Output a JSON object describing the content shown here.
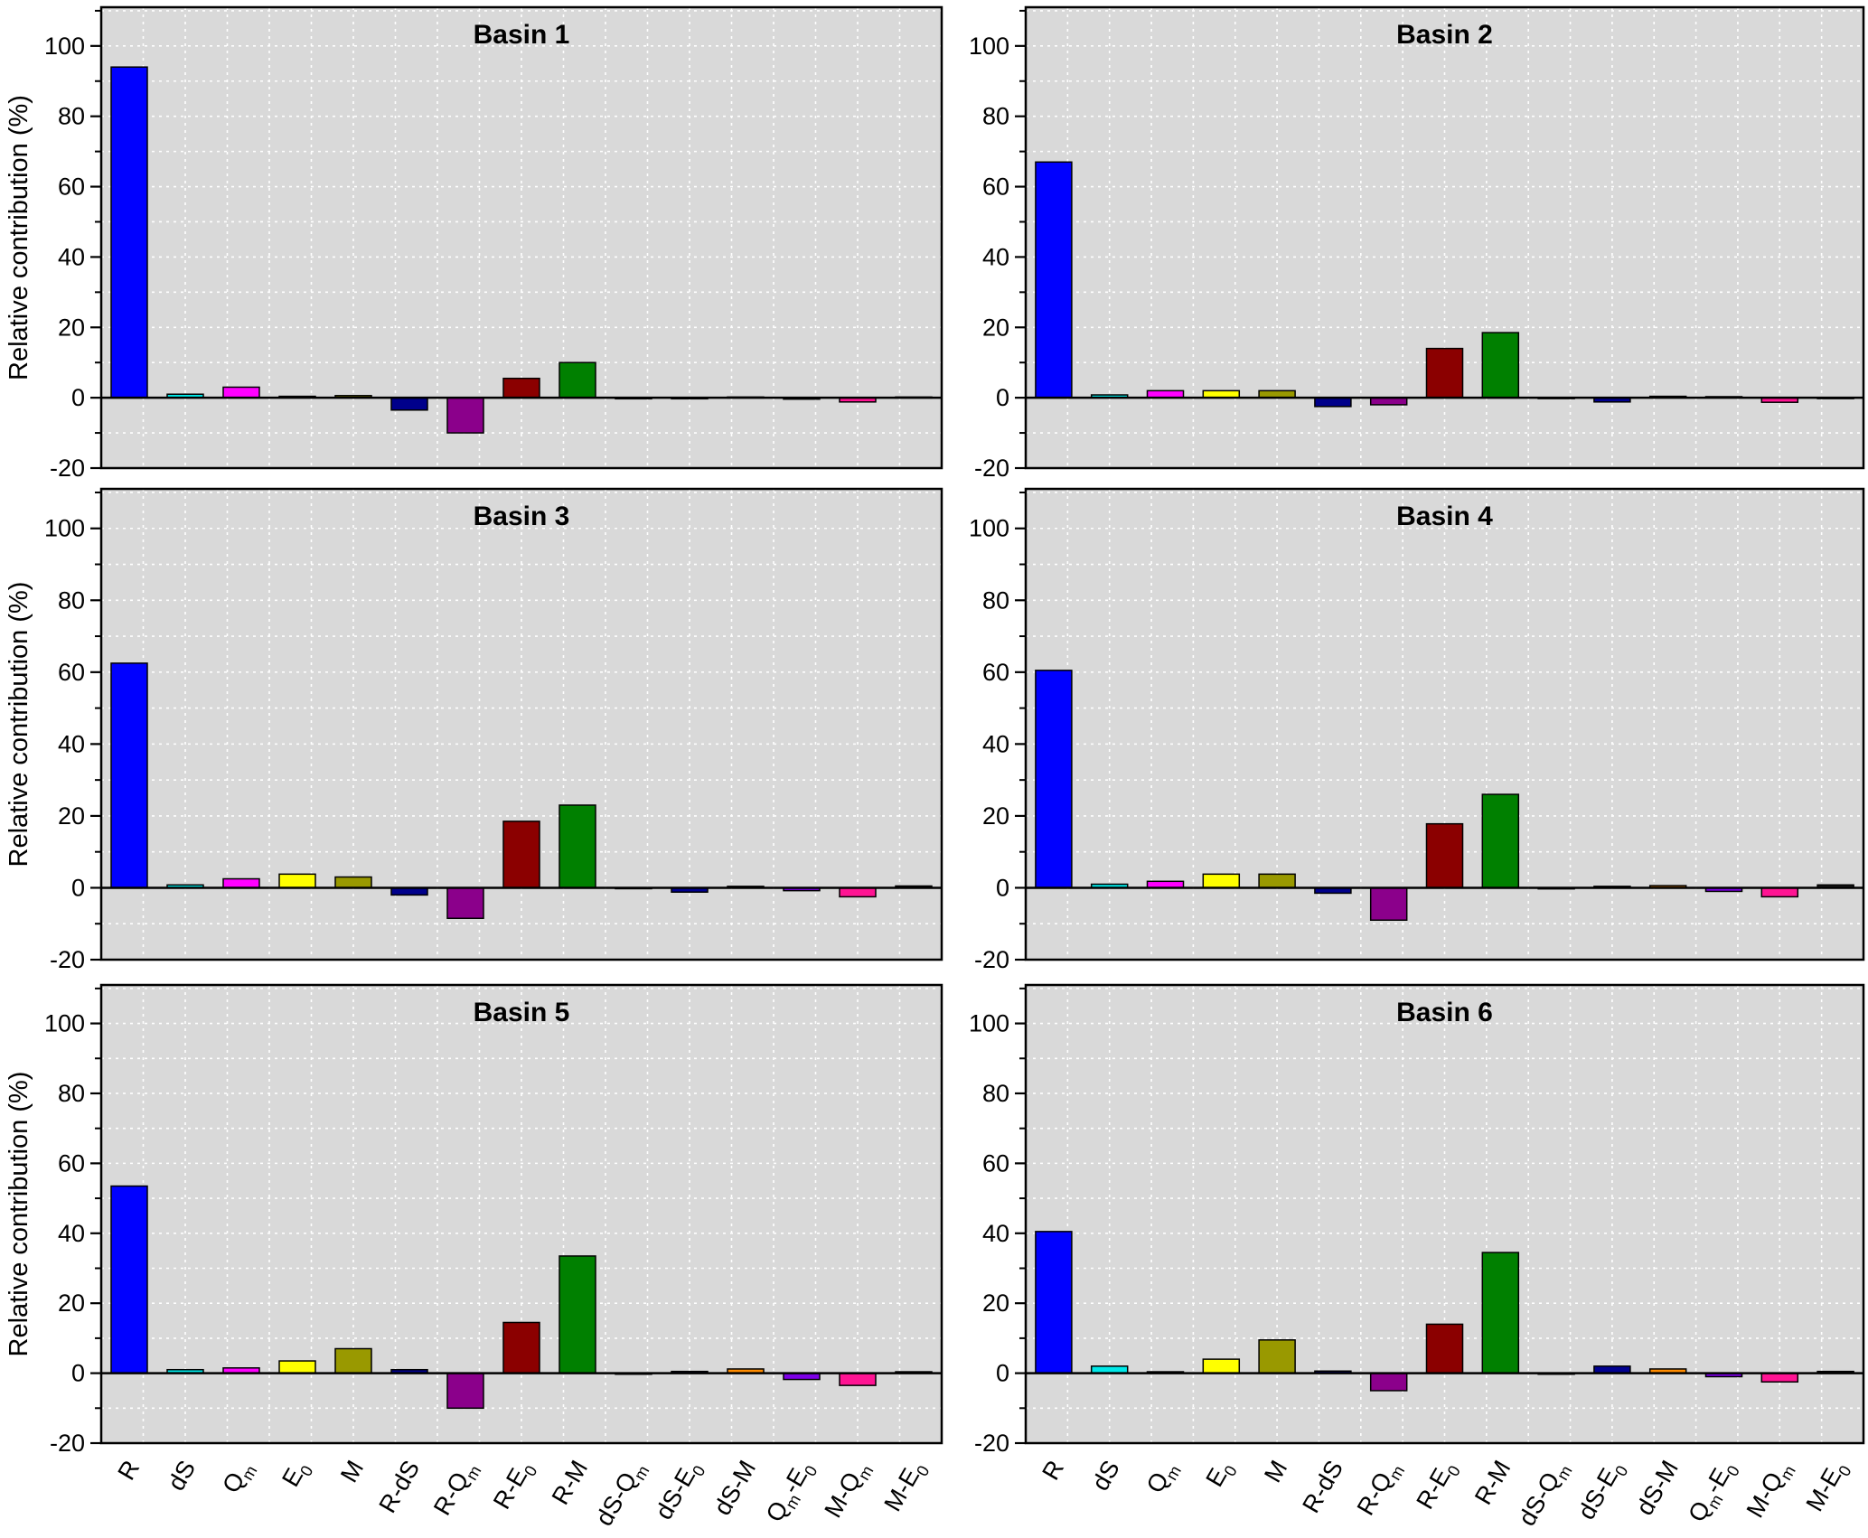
{
  "figure": {
    "ylabel": "Relative contribution (%)",
    "panel_bg": "#d9d9d9",
    "grid_color": "#ffffff",
    "axis_color": "#000000",
    "bar_colors": [
      "#0000ff",
      "#00e8e8",
      "#ff00ff",
      "#ffff00",
      "#999900",
      "#00008b",
      "#8b008b",
      "#8b0000",
      "#008000",
      "#1a1a1a",
      "#000090",
      "#ff8c00",
      "#7d00e6",
      "#ff1493",
      "#1a1a1a"
    ],
    "categories_display": [
      "R",
      "dS",
      "Q_m",
      "E_0",
      "M",
      "R-dS",
      "R-Q_m",
      "R-E_0",
      "R-M",
      "dS-Q_m",
      "dS-E_0",
      "dS-M",
      "Q_m-E_0",
      "M-Q_m",
      "M-E_0"
    ]
  },
  "chart_data": [
    {
      "type": "bar",
      "title": "Basin 1",
      "ylabel": "Relative contribution (%)",
      "ylim": [
        -20,
        111
      ],
      "yticks": [
        -20,
        0,
        20,
        40,
        60,
        80,
        100
      ],
      "grid": "on",
      "categories": [
        "R",
        "dS",
        "Qm",
        "E0",
        "M",
        "R-dS",
        "R-Qm",
        "R-E0",
        "R-M",
        "dS-Qm",
        "dS-E0",
        "dS-M",
        "Qm-E0",
        "M-Qm",
        "M-E0"
      ],
      "values": [
        94.0,
        1.0,
        3.0,
        0.4,
        0.6,
        -3.5,
        -10.0,
        5.5,
        10.0,
        -0.3,
        -0.3,
        0.2,
        -0.4,
        -1.2,
        0.2
      ]
    },
    {
      "type": "bar",
      "title": "Basin 2",
      "ylabel": "Relative contribution (%)",
      "ylim": [
        -20,
        111
      ],
      "yticks": [
        -20,
        0,
        20,
        40,
        60,
        80,
        100
      ],
      "grid": "on",
      "categories": [
        "R",
        "dS",
        "Qm",
        "E0",
        "M",
        "R-dS",
        "R-Qm",
        "R-E0",
        "R-M",
        "dS-Qm",
        "dS-E0",
        "dS-M",
        "Qm-E0",
        "M-Qm",
        "M-E0"
      ],
      "values": [
        67.0,
        0.8,
        2.0,
        2.0,
        2.0,
        -2.5,
        -2.0,
        14.0,
        18.5,
        -0.2,
        -1.2,
        0.4,
        0.3,
        -1.3,
        -0.2
      ]
    },
    {
      "type": "bar",
      "title": "Basin 3",
      "ylabel": "Relative contribution (%)",
      "ylim": [
        -20,
        111
      ],
      "yticks": [
        -20,
        0,
        20,
        40,
        60,
        80,
        100
      ],
      "grid": "on",
      "categories": [
        "R",
        "dS",
        "Qm",
        "E0",
        "M",
        "R-dS",
        "R-Qm",
        "R-E0",
        "R-M",
        "dS-Qm",
        "dS-E0",
        "dS-M",
        "Qm-E0",
        "M-Qm",
        "M-E0"
      ],
      "values": [
        62.5,
        0.8,
        2.5,
        3.8,
        3.0,
        -2.0,
        -8.5,
        18.5,
        23.0,
        -0.2,
        -1.2,
        0.4,
        -0.8,
        -2.5,
        0.5
      ]
    },
    {
      "type": "bar",
      "title": "Basin 4",
      "ylabel": "Relative contribution (%)",
      "ylim": [
        -20,
        111
      ],
      "yticks": [
        -20,
        0,
        20,
        40,
        60,
        80,
        100
      ],
      "grid": "on",
      "categories": [
        "R",
        "dS",
        "Qm",
        "E0",
        "M",
        "R-dS",
        "R-Qm",
        "R-E0",
        "R-M",
        "dS-Qm",
        "dS-E0",
        "dS-M",
        "Qm-E0",
        "M-Qm",
        "M-E0"
      ],
      "values": [
        60.5,
        1.0,
        1.8,
        3.8,
        3.8,
        -1.5,
        -9.0,
        17.8,
        26.0,
        -0.3,
        0.4,
        0.6,
        -1.0,
        -2.5,
        0.8
      ]
    },
    {
      "type": "bar",
      "title": "Basin 5",
      "ylabel": "Relative contribution (%)",
      "ylim": [
        -20,
        111
      ],
      "yticks": [
        -20,
        0,
        20,
        40,
        60,
        80,
        100
      ],
      "grid": "on",
      "categories": [
        "R",
        "dS",
        "Qm",
        "E0",
        "M",
        "R-dS",
        "R-Qm",
        "R-E0",
        "R-M",
        "dS-Qm",
        "dS-E0",
        "dS-M",
        "Qm-E0",
        "M-Qm",
        "M-E0"
      ],
      "values": [
        53.5,
        1.0,
        1.5,
        3.5,
        7.0,
        1.0,
        -10.0,
        14.5,
        33.5,
        -0.3,
        0.5,
        1.2,
        -1.8,
        -3.5,
        0.4
      ]
    },
    {
      "type": "bar",
      "title": "Basin 6",
      "ylabel": "Relative contribution (%)",
      "ylim": [
        -20,
        111
      ],
      "yticks": [
        -20,
        0,
        20,
        40,
        60,
        80,
        100
      ],
      "grid": "on",
      "categories": [
        "R",
        "dS",
        "Qm",
        "E0",
        "M",
        "R-dS",
        "R-Qm",
        "R-E0",
        "R-M",
        "dS-Qm",
        "dS-E0",
        "dS-M",
        "Qm-E0",
        "M-Qm",
        "M-E0"
      ],
      "values": [
        40.5,
        2.0,
        0.4,
        4.0,
        9.5,
        0.6,
        -5.0,
        14.0,
        34.5,
        -0.3,
        2.0,
        1.2,
        -1.0,
        -2.5,
        0.5
      ]
    }
  ]
}
